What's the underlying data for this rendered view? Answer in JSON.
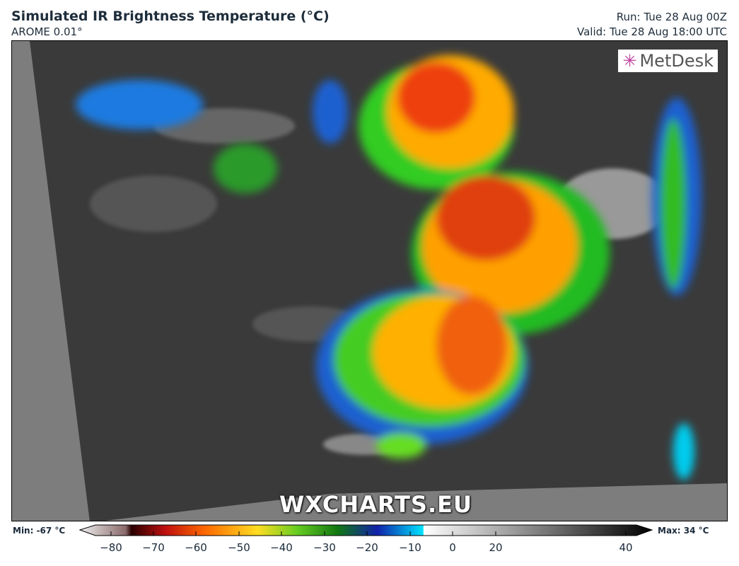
{
  "header": {
    "title": "Simulated IR Brightness Temperature (°C)",
    "model": "AROME 0.01°",
    "run": "Run: Tue 28 Aug 00Z",
    "valid": "Valid: Tue 28 Aug 18:00 UTC"
  },
  "logo": {
    "text": "MetDesk",
    "icon": "metdesk-starburst-icon"
  },
  "watermark": "WXCHARTS.EU",
  "colorbar": {
    "min_label": "Min: -67 °C",
    "max_label": "Max: 34 °C",
    "unit": "°C",
    "ticks": [
      "−80",
      "−70",
      "−60",
      "−50",
      "−40",
      "−30",
      "−20",
      "−10",
      "0",
      "20",
      "40"
    ],
    "range": [
      -80,
      40
    ],
    "colors": {
      "-80": "#f0f0f0",
      "-72": "#2a0000",
      "-65": "#c01010",
      "-58": "#ff6a00",
      "-50": "#ffdd22",
      "-42": "#66cc22",
      "-35": "#117711",
      "-30": "#1122aa",
      "-20": "#00e5ff",
      "-19": "#ffffff",
      "40": "#000000"
    }
  }
}
